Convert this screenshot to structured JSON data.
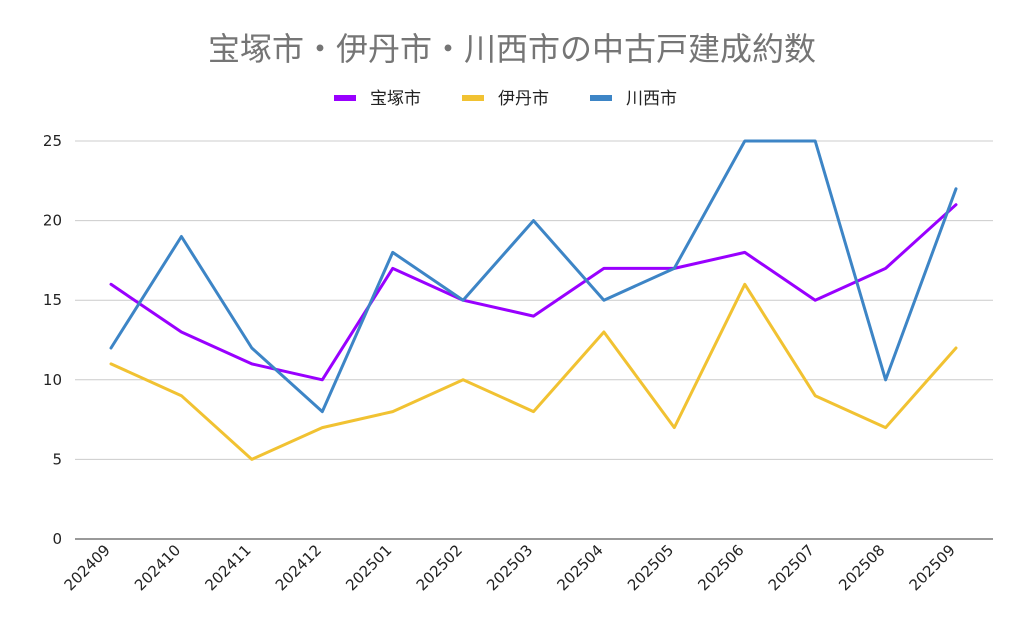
{
  "chart_data": {
    "type": "line",
    "title": "宝塚市・伊丹市・川西市の中古戸建成約数",
    "xlabel": "",
    "ylabel": "",
    "categories": [
      "202409",
      "202410",
      "202411",
      "202412",
      "202501",
      "202502",
      "202503",
      "202504",
      "202505",
      "202506",
      "202507",
      "202508",
      "202509"
    ],
    "series": [
      {
        "name": "宝塚市",
        "color": "#9900ff",
        "values": [
          16,
          13,
          11,
          10,
          17,
          15,
          14,
          17,
          17,
          18,
          15,
          17,
          21
        ]
      },
      {
        "name": "伊丹市",
        "color": "#f1c232",
        "values": [
          11,
          9,
          5,
          7,
          8,
          10,
          8,
          13,
          7,
          16,
          9,
          7,
          12
        ]
      },
      {
        "name": "川西市",
        "color": "#3d85c6",
        "values": [
          12,
          19,
          12,
          8,
          18,
          15,
          20,
          15,
          17,
          25,
          25,
          10,
          22
        ]
      }
    ],
    "ylim": [
      0,
      25
    ],
    "yticks": [
      0,
      5,
      10,
      15,
      20,
      25
    ],
    "grid": true,
    "legend_position": "top-center"
  }
}
